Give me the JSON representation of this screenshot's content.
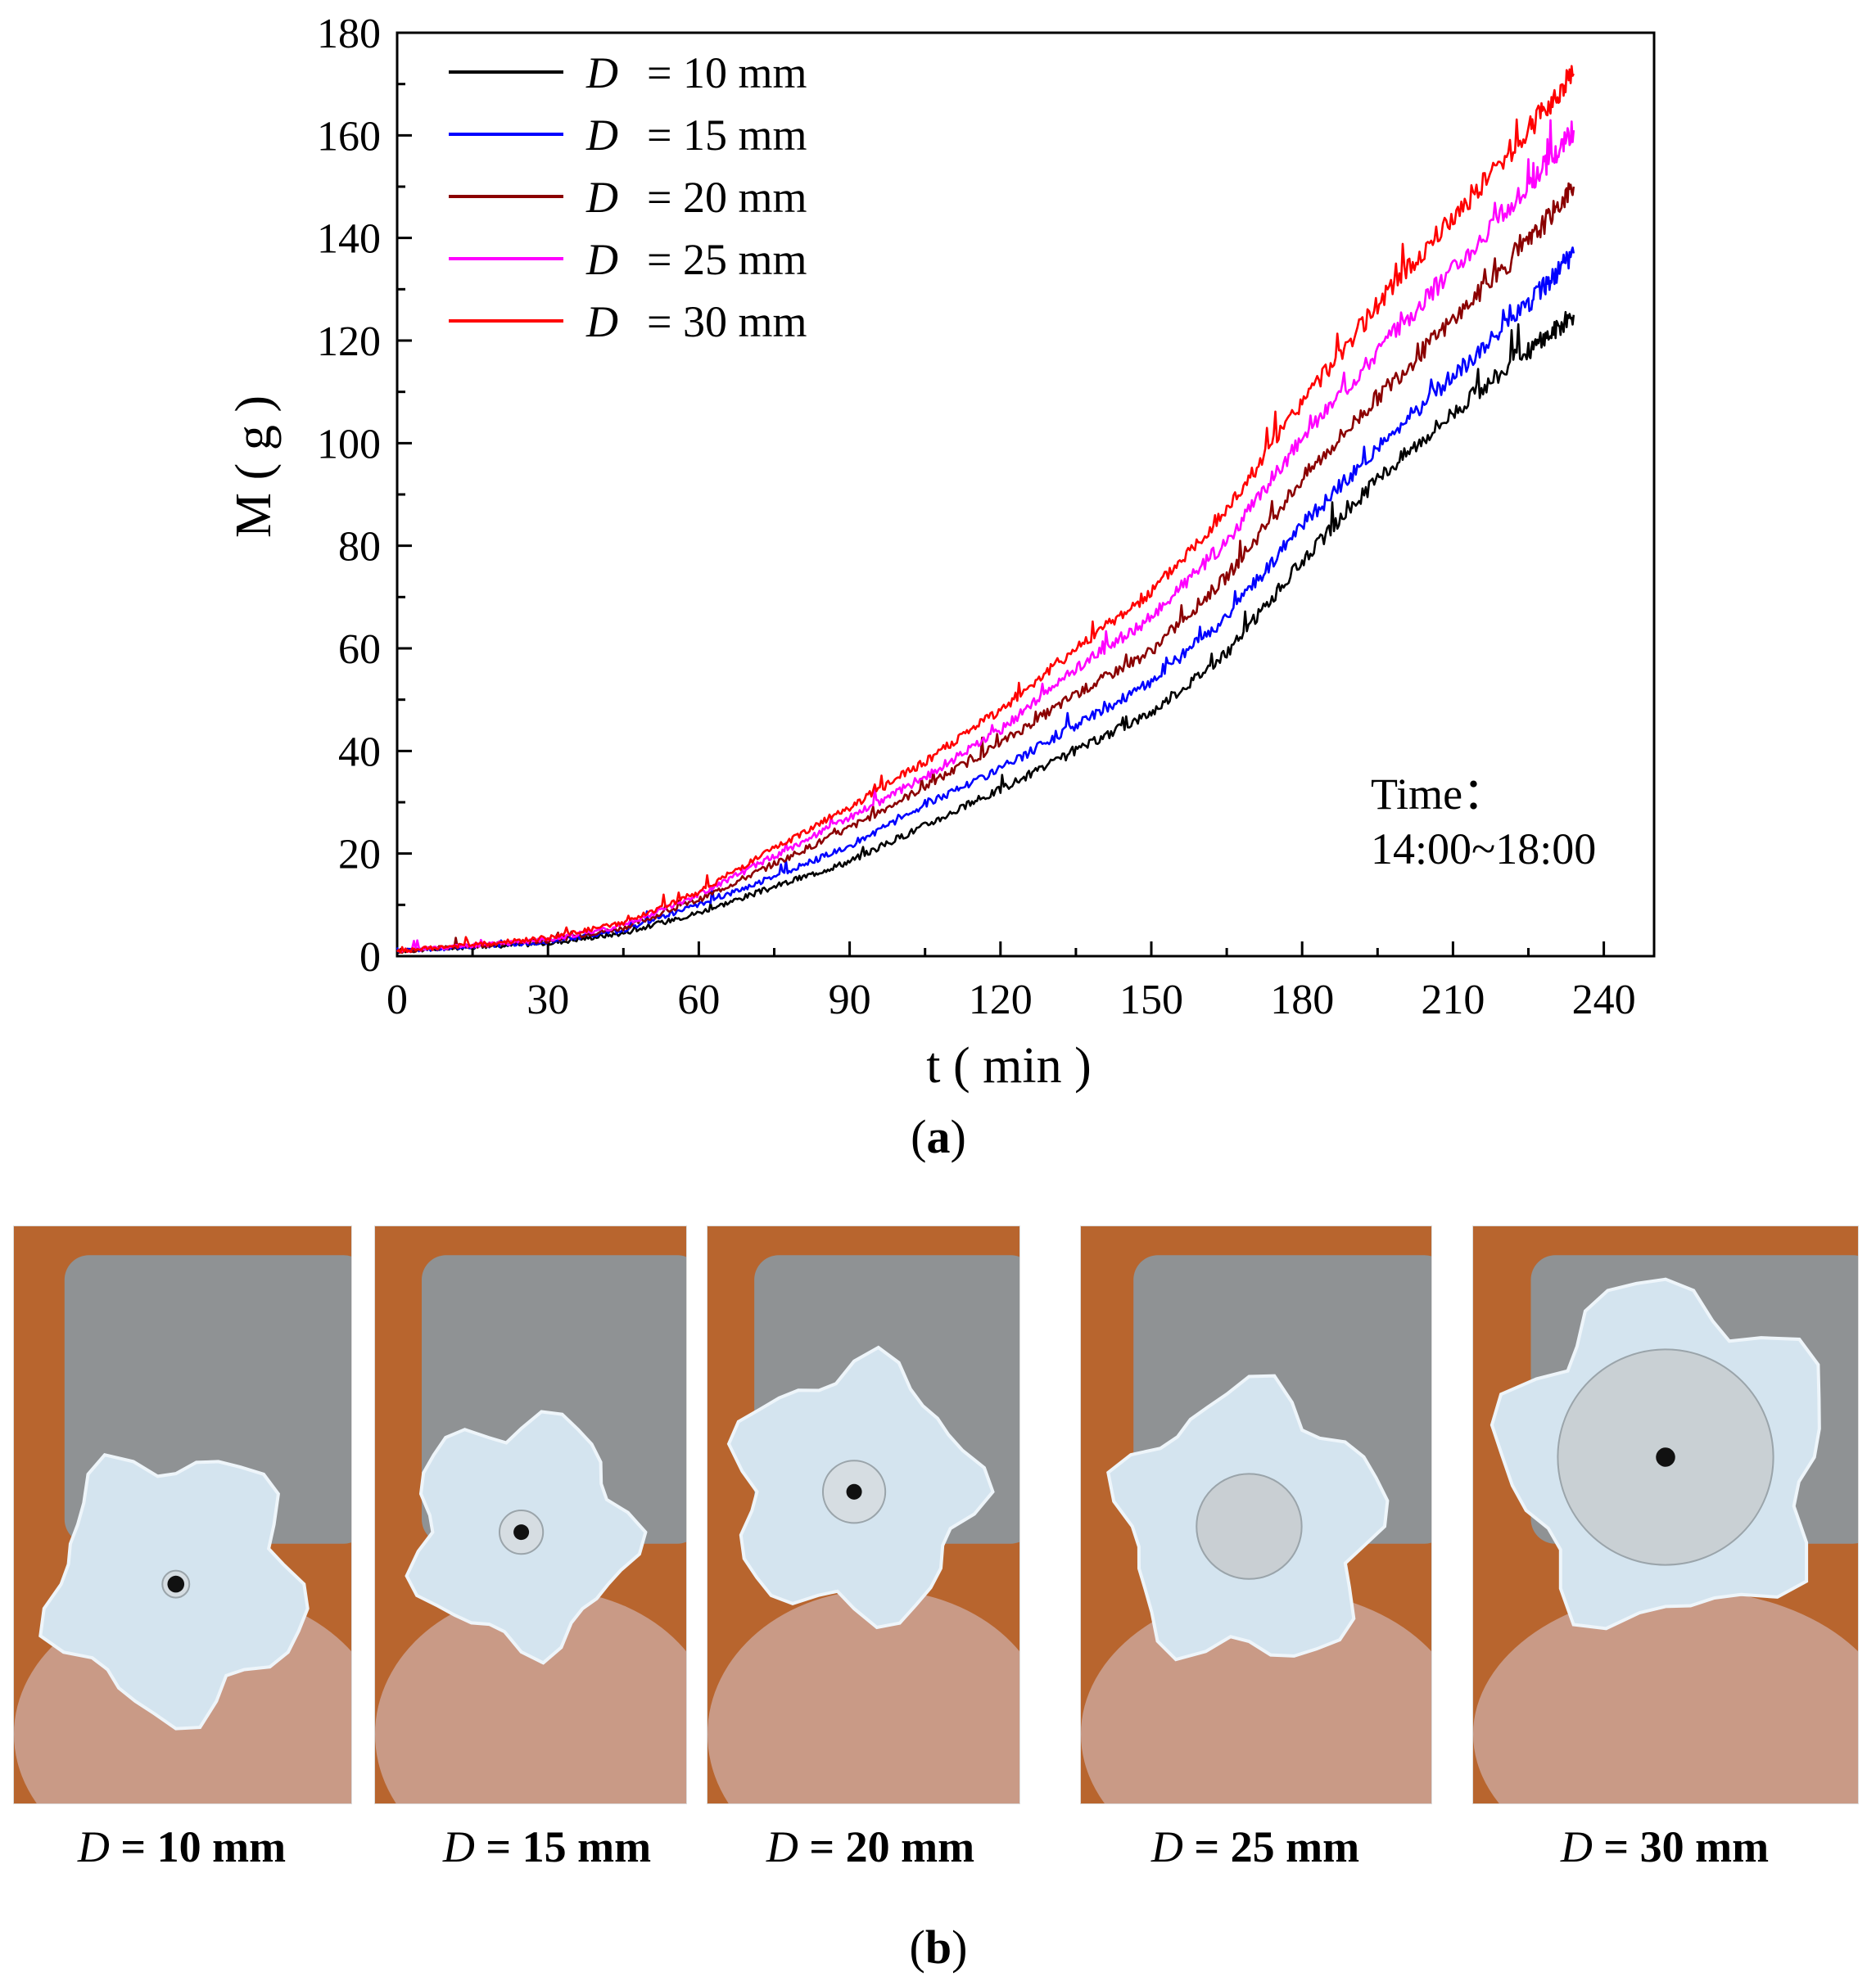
{
  "panel_a_label": {
    "open": "(",
    "letter": "a",
    "close": ")"
  },
  "panel_b_label": {
    "open": "(",
    "letter": "b",
    "close": ")"
  },
  "chart_data": {
    "type": "line",
    "xlabel": "t ( min )",
    "ylabel": "M ( g )",
    "xlim": [
      0,
      250
    ],
    "ylim": [
      0,
      180
    ],
    "xticks": [
      0,
      30,
      60,
      90,
      120,
      150,
      180,
      210,
      240
    ],
    "yticks": [
      0,
      20,
      40,
      60,
      80,
      100,
      120,
      140,
      160,
      180
    ],
    "grid": false,
    "legend_position": "top-left",
    "annotation": {
      "line1": "Time：",
      "line2": "14:00~18:00"
    },
    "x": [
      0,
      15,
      30,
      45,
      60,
      75,
      90,
      105,
      120,
      135,
      150,
      165,
      180,
      195,
      210,
      225,
      234
    ],
    "series": [
      {
        "name": "D = 10 mm",
        "legend_var": "D",
        "legend_text": "= 10 mm",
        "color": "#000000",
        "values": [
          1.0,
          1.8,
          2.5,
          4.5,
          8.5,
          13.5,
          18.5,
          25.5,
          32.5,
          40.0,
          47.5,
          59.0,
          77.0,
          93.0,
          106.0,
          118.0,
          125.0
        ]
      },
      {
        "name": "D = 15 mm",
        "legend_var": "D",
        "legend_text": "= 15 mm",
        "color": "#0000ff",
        "values": [
          1.0,
          1.9,
          2.8,
          5.0,
          10.0,
          15.5,
          21.5,
          29.5,
          36.5,
          45.0,
          53.5,
          66.0,
          84.0,
          99.0,
          113.0,
          127.0,
          137.0
        ]
      },
      {
        "name": "D = 20 mm",
        "legend_var": "D",
        "legend_text": "= 20 mm",
        "color": "#8b0000",
        "values": [
          1.0,
          2.0,
          3.0,
          5.5,
          11.0,
          18.0,
          25.0,
          33.0,
          41.5,
          51.0,
          59.5,
          74.0,
          93.0,
          109.0,
          124.0,
          139.0,
          150.0
        ]
      },
      {
        "name": "D = 25 mm",
        "legend_var": "D",
        "legend_text": "= 25 mm",
        "color": "#ff00ff",
        "values": [
          1.0,
          2.1,
          3.2,
          6.0,
          12.0,
          19.5,
          27.0,
          35.0,
          44.0,
          56.0,
          66.0,
          81.0,
          101.0,
          118.0,
          134.0,
          150.0,
          161.0
        ]
      },
      {
        "name": "D = 30 mm",
        "legend_var": "D",
        "legend_text": "= 30 mm",
        "color": "#ff0000",
        "values": [
          1.0,
          2.2,
          3.5,
          6.5,
          12.5,
          21.0,
          29.0,
          38.0,
          48.0,
          60.0,
          71.0,
          87.0,
          108.0,
          127.0,
          144.0,
          161.0,
          172.0
        ]
      }
    ]
  },
  "photos": [
    {
      "var": "D",
      "text": " = 10 mm",
      "plate_color": "#d6dde2",
      "hole_color": "#111111"
    },
    {
      "var": "D",
      "text": " = 15 mm",
      "plate_color": "#d6dde2",
      "hole_color": "#111111"
    },
    {
      "var": "D",
      "text": " = 20 mm",
      "plate_color": "#d6dde2",
      "hole_color": "#111111"
    },
    {
      "var": "D",
      "text": " = 25 mm",
      "plate_color": "#c9cfd3",
      "hole_color": "#c9cfd3"
    },
    {
      "var": "D",
      "text": " = 30 mm",
      "plate_color": "#c9d0d4",
      "hole_color": "#111111"
    }
  ],
  "colors": {
    "wood": "#b8652e",
    "concrete": "#8f9294",
    "ice": "#d4e4ef",
    "skin": "#c99a86"
  }
}
